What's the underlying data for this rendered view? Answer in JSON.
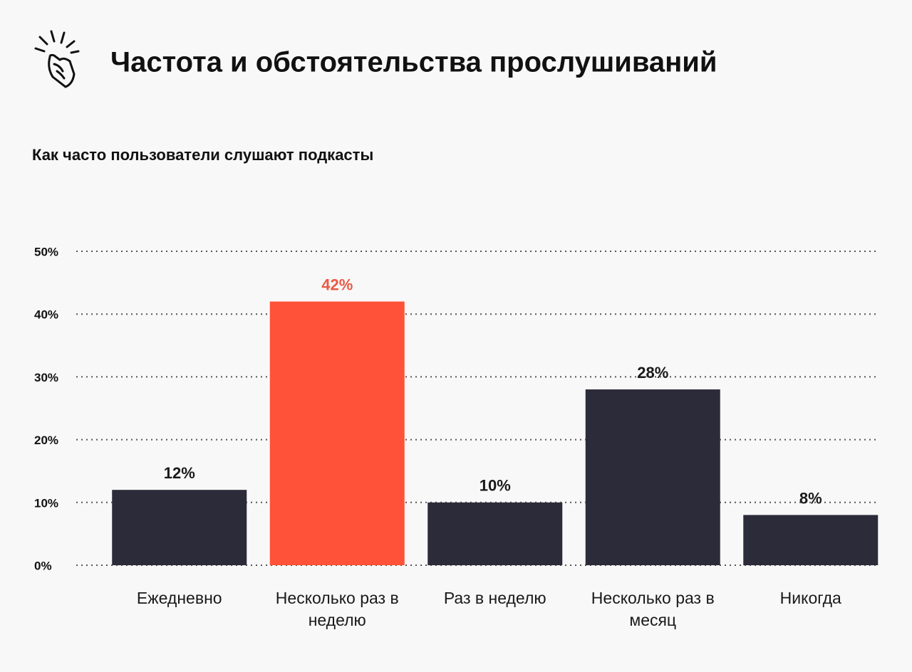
{
  "chart_data": {
    "type": "bar",
    "title": "Частота и обстоятельства прослушиваний",
    "subtitle": "Как часто пользователи слушают подкасты",
    "categories": [
      "Ежедневно",
      "Несколько раз в неделю",
      "Раз в неделю",
      "Несколько раз в месяц",
      "Никогда"
    ],
    "values": [
      12,
      42,
      10,
      28,
      8
    ],
    "value_labels": [
      "12%",
      "42%",
      "10%",
      "28%",
      "8%"
    ],
    "colors": [
      "#2c2b3a",
      "#ff5238",
      "#2c2b3a",
      "#2c2b3a",
      "#2c2b3a"
    ],
    "ylim": [
      0,
      50
    ],
    "yticks": [
      {
        "value": 0,
        "label": "0%"
      },
      {
        "value": 10,
        "label": "10%"
      },
      {
        "value": 20,
        "label": "20%"
      },
      {
        "value": 30,
        "label": "30%"
      },
      {
        "value": 40,
        "label": "40%"
      },
      {
        "value": 50,
        "label": "50%"
      }
    ],
    "grid": true
  }
}
